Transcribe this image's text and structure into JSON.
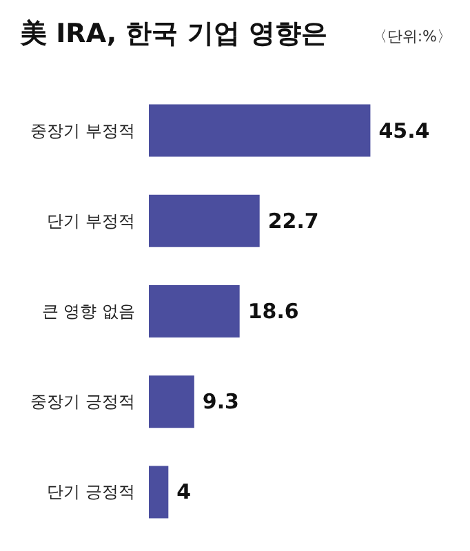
{
  "chart_data": {
    "type": "bar",
    "orientation": "horizontal",
    "title": "美 IRA, 한국 기업 영향은",
    "subtitle": "〈단위:%〉",
    "categories": [
      "중장기 부정적",
      "단기 부정적",
      "큰 영향 없음",
      "중장기 긍정적",
      "단기 긍정적"
    ],
    "values": [
      45.4,
      22.7,
      18.6,
      9.3,
      4
    ],
    "color": "#4b4e9e",
    "data_labels": true
  }
}
